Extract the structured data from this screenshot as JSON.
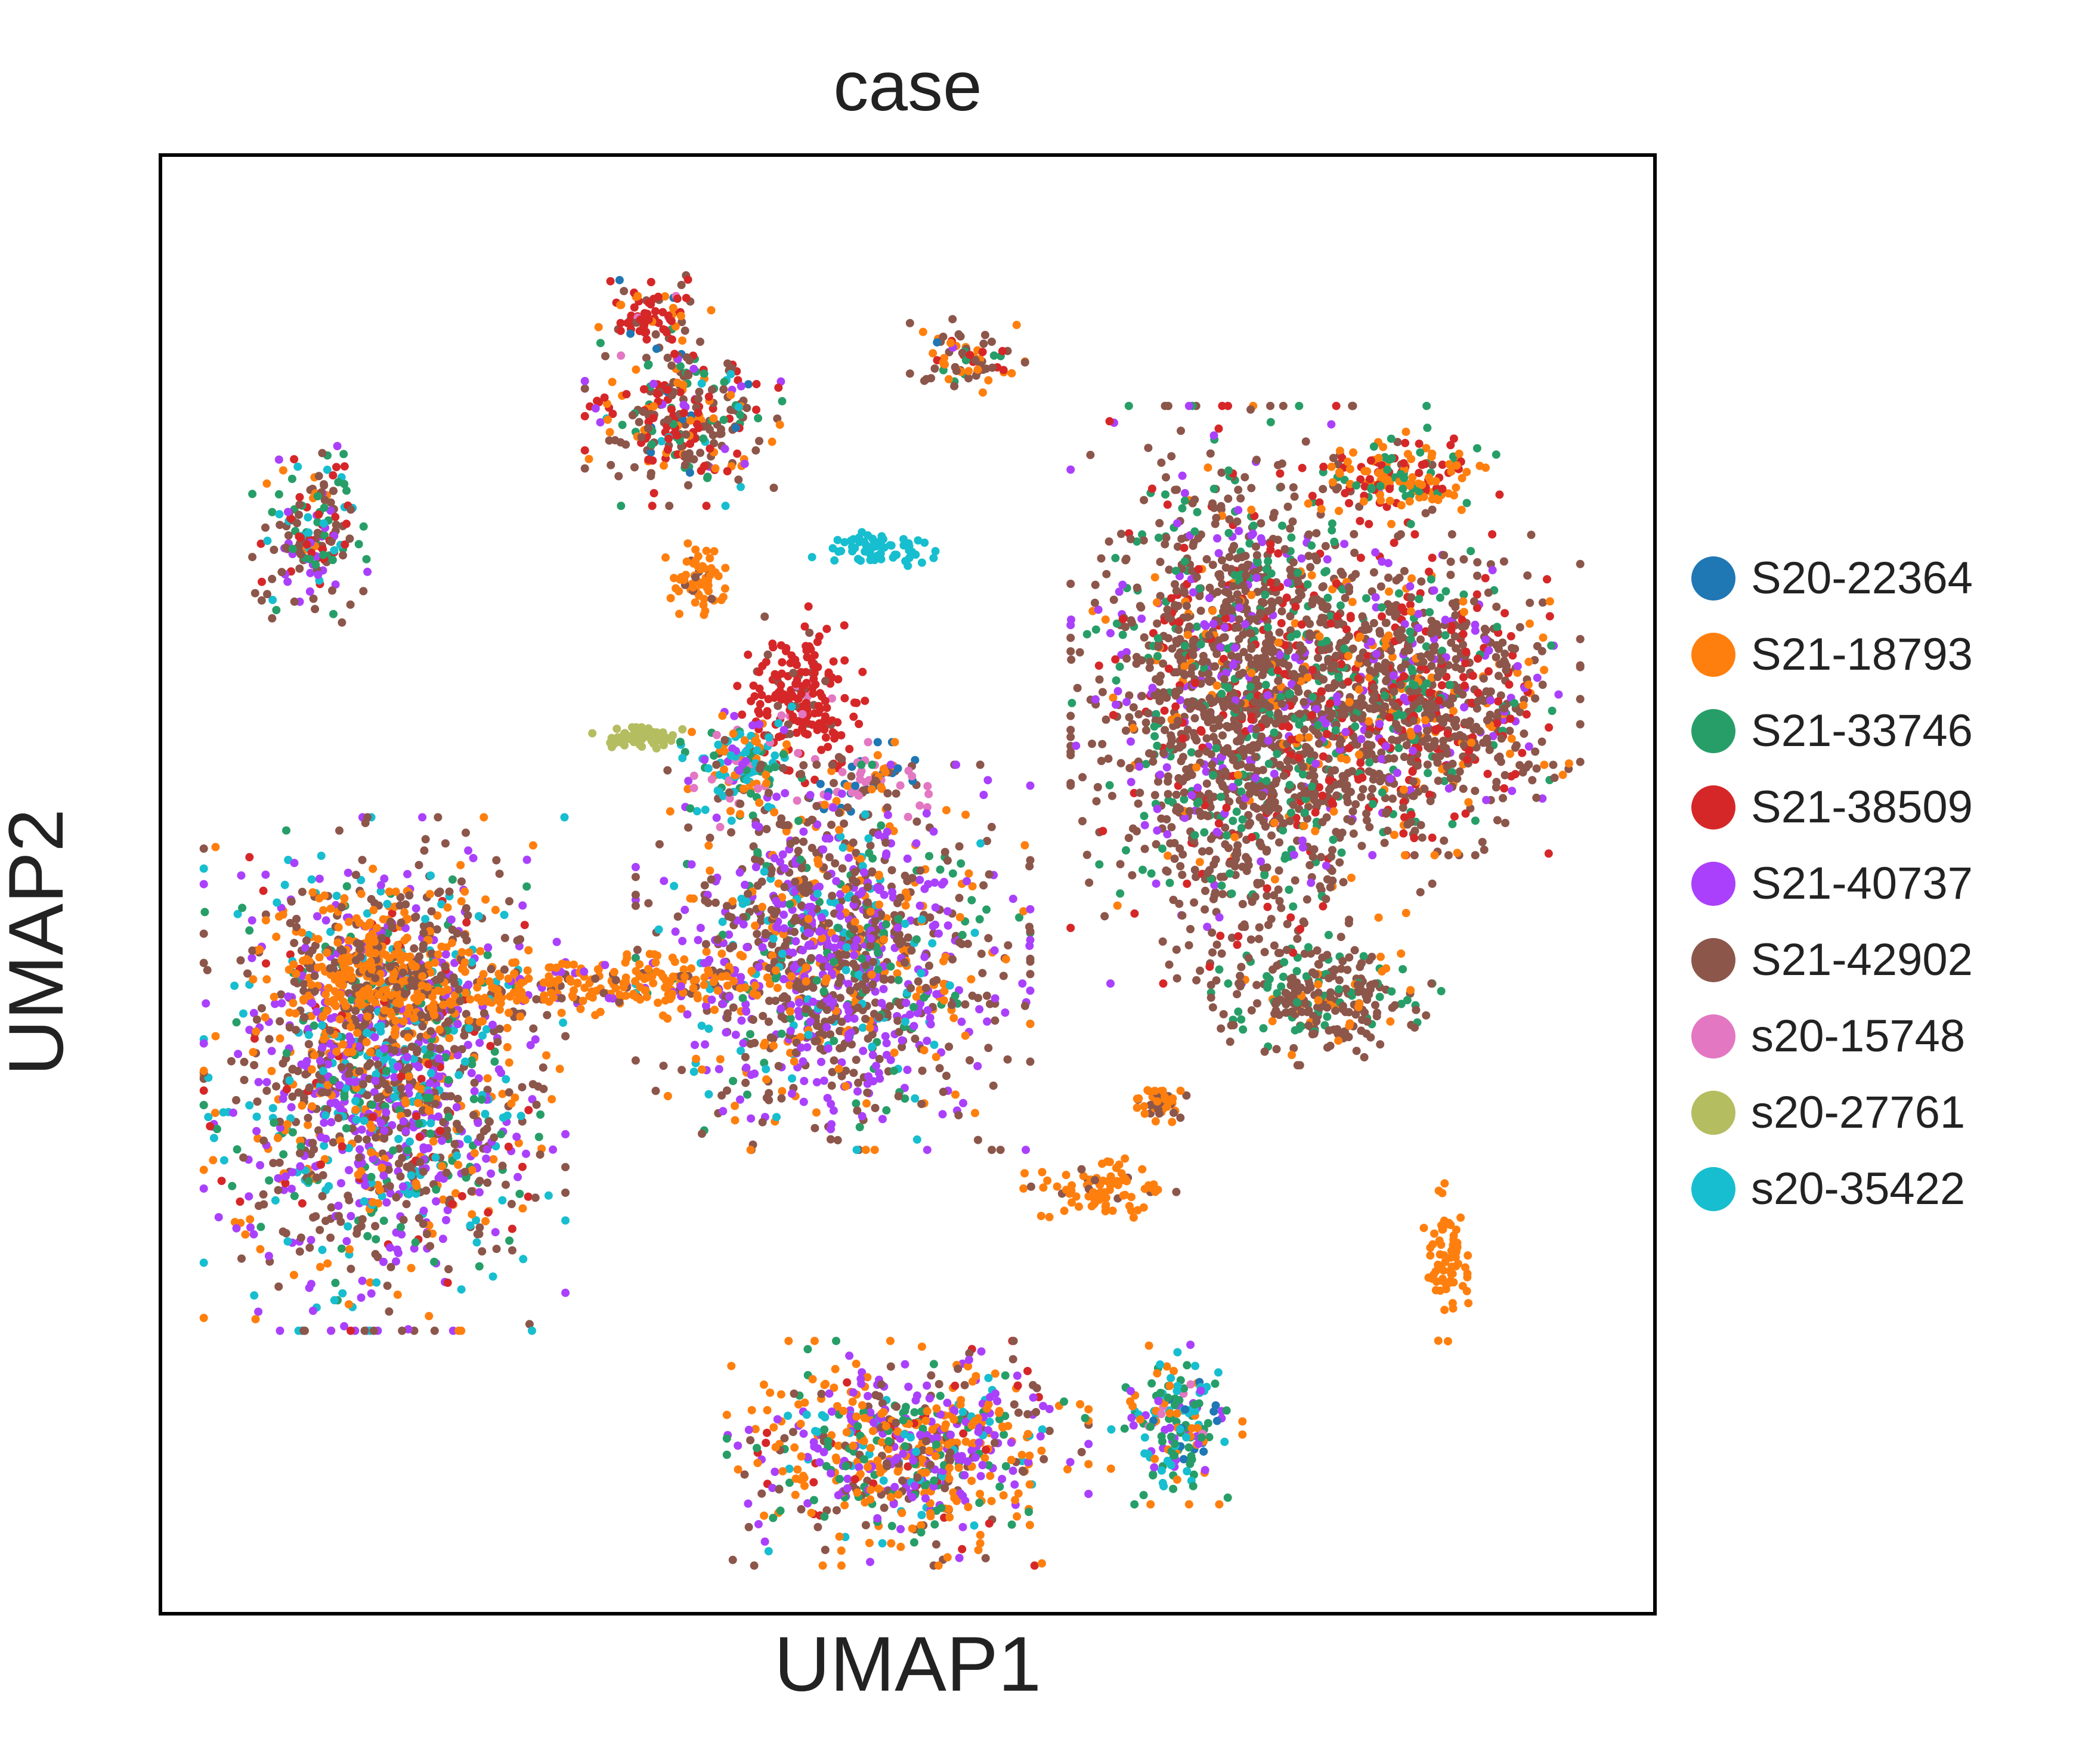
{
  "chart_data": {
    "type": "scatter",
    "title": "case",
    "xlabel": "UMAP1",
    "ylabel": "UMAP2",
    "xlim": [
      0,
      100
    ],
    "ylim": [
      0,
      100
    ],
    "grid": false,
    "ticks": false,
    "legend_position": "right",
    "series": [
      {
        "name": "S20-22364",
        "color": "#1f77b4"
      },
      {
        "name": "S21-18793",
        "color": "#ff7f0e"
      },
      {
        "name": "S21-33746",
        "color": "#279e68"
      },
      {
        "name": "S21-38509",
        "color": "#d62728"
      },
      {
        "name": "S21-40737",
        "color": "#aa40fc"
      },
      {
        "name": "S21-42902",
        "color": "#8c564b"
      },
      {
        "name": "s20-15748",
        "color": "#e377c2"
      },
      {
        "name": "s20-27761",
        "color": "#b5bd61"
      },
      {
        "name": "s20-35422",
        "color": "#17becf"
      }
    ],
    "clusters": [
      {
        "cx": 35,
        "cy": 82,
        "rx": 6,
        "ry": 5.5,
        "mix": {
          "S21-42902": 0.35,
          "S21-38509": 0.25,
          "S21-33746": 0.15,
          "S21-18793": 0.15,
          "S21-40737": 0.05,
          "s20-35422": 0.03,
          "S20-22364": 0.02
        }
      },
      {
        "cx": 33,
        "cy": 89,
        "rx": 3.5,
        "ry": 2.5,
        "mix": {
          "S21-38509": 0.55,
          "S21-42902": 0.15,
          "S21-18793": 0.2,
          "s20-15748": 0.05,
          "S20-22364": 0.05
        }
      },
      {
        "cx": 36,
        "cy": 71,
        "rx": 2,
        "ry": 3,
        "mix": {
          "S21-18793": 0.9,
          "S21-42902": 0.1
        }
      },
      {
        "cx": 54,
        "cy": 86,
        "rx": 3.5,
        "ry": 2.5,
        "mix": {
          "S21-42902": 0.35,
          "S21-18793": 0.3,
          "S21-33746": 0.15,
          "S21-38509": 0.1,
          "S20-22364": 0.05,
          "S21-40737": 0.05
        }
      },
      {
        "cx": 10,
        "cy": 74,
        "rx": 3.5,
        "ry": 5.5,
        "mix": {
          "S21-42902": 0.35,
          "S21-38509": 0.2,
          "S21-33746": 0.15,
          "S21-40737": 0.15,
          "s20-35422": 0.1,
          "S21-18793": 0.05
        }
      },
      {
        "cx": 43,
        "cy": 63,
        "rx": 4,
        "ry": 5.5,
        "mix": {
          "S21-38509": 0.85,
          "S21-42902": 0.1,
          "s20-15748": 0.05
        }
      },
      {
        "cx": 39,
        "cy": 58,
        "rx": 4,
        "ry": 4,
        "mix": {
          "s20-35422": 0.3,
          "S21-18793": 0.2,
          "S21-33746": 0.15,
          "s20-15748": 0.15,
          "S21-42902": 0.1,
          "S21-40737": 0.1
        }
      },
      {
        "cx": 47,
        "cy": 57,
        "rx": 4,
        "ry": 2.5,
        "mix": {
          "s20-15748": 0.4,
          "S21-18793": 0.2,
          "S21-42902": 0.2,
          "S20-22364": 0.2
        }
      },
      {
        "cx": 45,
        "cy": 45,
        "rx": 12,
        "ry": 12,
        "mix": {
          "S21-42902": 0.4,
          "S21-40737": 0.28,
          "S21-18793": 0.15,
          "S21-33746": 0.1,
          "s20-35422": 0.07
        }
      },
      {
        "cx": 15,
        "cy": 37,
        "rx": 11,
        "ry": 16,
        "mix": {
          "S21-42902": 0.3,
          "S21-40737": 0.25,
          "s20-35422": 0.15,
          "S21-18793": 0.15,
          "S21-33746": 0.1,
          "S21-38509": 0.05
        }
      },
      {
        "cx": 15,
        "cy": 44,
        "rx": 8,
        "ry": 5,
        "mix": {
          "S21-18793": 0.7,
          "S21-42902": 0.3
        }
      },
      {
        "cx": 73,
        "cy": 63,
        "rx": 11,
        "ry": 18,
        "mix": {
          "S21-42902": 0.6,
          "S21-33746": 0.15,
          "S21-38509": 0.1,
          "S21-40737": 0.1,
          "S21-18793": 0.05
        }
      },
      {
        "cx": 84,
        "cy": 63,
        "rx": 10,
        "ry": 10,
        "mix": {
          "S21-42902": 0.5,
          "S21-38509": 0.2,
          "S21-33746": 0.1,
          "S21-18793": 0.1,
          "S21-40737": 0.1
        }
      },
      {
        "cx": 78,
        "cy": 42,
        "rx": 7,
        "ry": 4,
        "mix": {
          "S21-42902": 0.65,
          "S21-33746": 0.25,
          "S21-18793": 0.1
        }
      },
      {
        "cx": 83,
        "cy": 78,
        "rx": 6,
        "ry": 3,
        "mix": {
          "S21-18793": 0.5,
          "S21-33746": 0.25,
          "S21-38509": 0.25
        }
      },
      {
        "cx": 50,
        "cy": 11,
        "rx": 11,
        "ry": 7,
        "mix": {
          "S21-18793": 0.35,
          "S21-40737": 0.25,
          "S21-33746": 0.15,
          "S21-42902": 0.15,
          "s20-35422": 0.05,
          "S21-38509": 0.05
        }
      },
      {
        "cx": 68,
        "cy": 13,
        "rx": 4,
        "ry": 5,
        "mix": {
          "S21-33746": 0.3,
          "s20-35422": 0.2,
          "S21-18793": 0.2,
          "S21-40737": 0.15,
          "S20-22364": 0.1,
          "s20-15748": 0.05
        }
      },
      {
        "cx": 30,
        "cy": 43,
        "rx": 12,
        "ry": 2,
        "mix": {
          "S21-18793": 0.8,
          "S21-42902": 0.1,
          "S21-40737": 0.1
        }
      },
      {
        "cx": 63,
        "cy": 29,
        "rx": 5,
        "ry": 2,
        "mix": {
          "S21-18793": 0.9,
          "S21-42902": 0.1
        }
      },
      {
        "cx": 67,
        "cy": 35,
        "rx": 1.5,
        "ry": 1.2,
        "mix": {
          "S21-42902": 0.5,
          "S21-18793": 0.5
        }
      },
      {
        "cx": 48,
        "cy": 73,
        "rx": 4,
        "ry": 1.2,
        "mix": {
          "s20-35422": 1.0
        }
      },
      {
        "cx": 32,
        "cy": 60,
        "rx": 3,
        "ry": 0.7,
        "mix": {
          "s20-27761": 1.0
        }
      },
      {
        "cx": 86,
        "cy": 24,
        "rx": 1.5,
        "ry": 5,
        "mix": {
          "S21-18793": 1.0
        }
      }
    ]
  }
}
